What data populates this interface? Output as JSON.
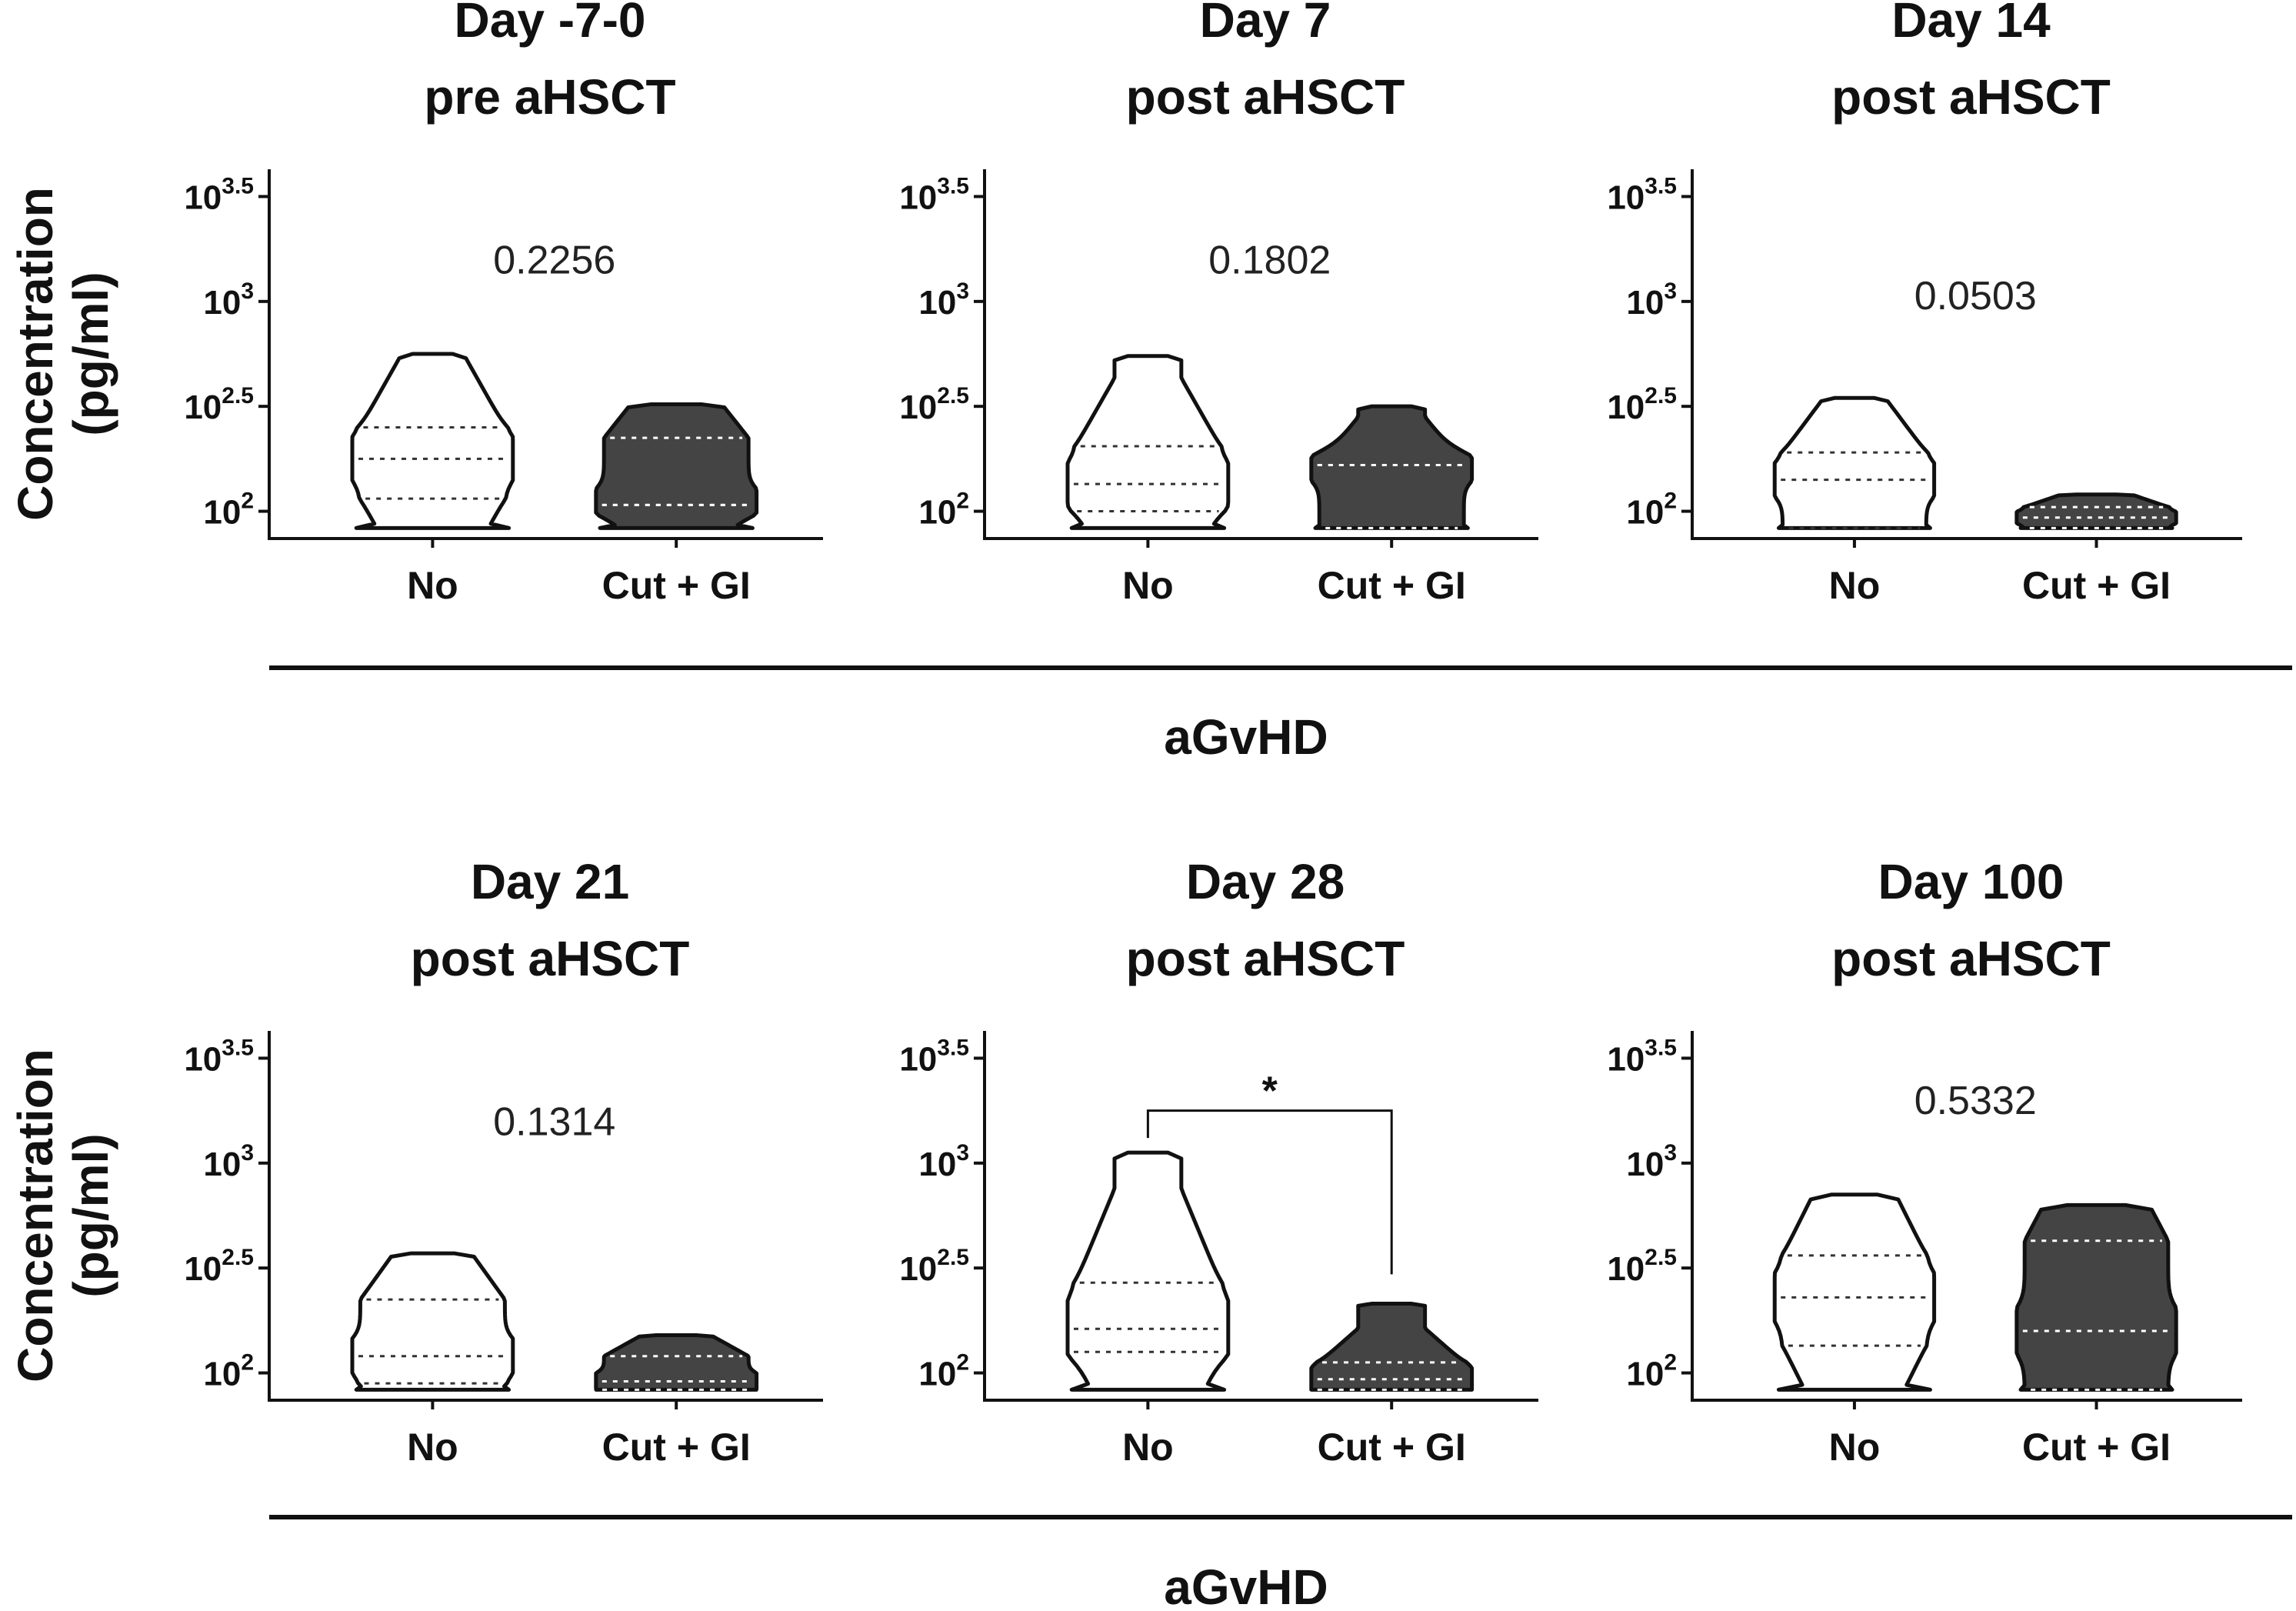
{
  "chart_data": [
    {
      "type": "violin",
      "title": [
        "Day -7-0",
        "pre aHSCT"
      ],
      "categories": [
        "No",
        "Cut + GI"
      ],
      "y_scale": "log10",
      "ylim": [
        1.87,
        3.63
      ],
      "yticks": [
        {
          "base": "10",
          "exp": "2"
        },
        {
          "base": "10",
          "exp": "2.5"
        },
        {
          "base": "10",
          "exp": "3"
        },
        {
          "base": "10",
          "exp": "3.5"
        }
      ],
      "ylabel": [
        "Concentration",
        "(pg/ml)"
      ],
      "annotation": "0.2256",
      "series": [
        {
          "name": "No",
          "fill": "#ffffff",
          "range": [
            1.92,
            2.75
          ],
          "median": 2.25,
          "quartiles": [
            2.06,
            2.4
          ]
        },
        {
          "name": "Cut + GI",
          "fill": "#444444",
          "range": [
            1.92,
            2.51
          ],
          "median": 2.03,
          "quartiles": [
            2.03,
            2.35
          ]
        }
      ]
    },
    {
      "type": "violin",
      "title": [
        "Day 7",
        "post aHSCT"
      ],
      "categories": [
        "No",
        "Cut + GI"
      ],
      "y_scale": "log10",
      "ylim": [
        1.87,
        3.63
      ],
      "yticks": [
        {
          "base": "10",
          "exp": "2"
        },
        {
          "base": "10",
          "exp": "2.5"
        },
        {
          "base": "10",
          "exp": "3"
        },
        {
          "base": "10",
          "exp": "3.5"
        }
      ],
      "annotation": "0.1802",
      "series": [
        {
          "name": "No",
          "fill": "#ffffff",
          "range": [
            1.92,
            2.74
          ],
          "median": 2.13,
          "quartiles": [
            2.0,
            2.31
          ]
        },
        {
          "name": "Cut + GI",
          "fill": "#444444",
          "range": [
            1.92,
            2.5
          ],
          "median": 2.22,
          "quartiles": [
            1.92,
            2.22
          ]
        }
      ]
    },
    {
      "type": "violin",
      "title": [
        "Day 14",
        "post aHSCT"
      ],
      "categories": [
        "No",
        "Cut + GI"
      ],
      "y_scale": "log10",
      "ylim": [
        1.87,
        3.63
      ],
      "yticks": [
        {
          "base": "10",
          "exp": "2"
        },
        {
          "base": "10",
          "exp": "2.5"
        },
        {
          "base": "10",
          "exp": "3"
        },
        {
          "base": "10",
          "exp": "3.5"
        }
      ],
      "annotation": "0.0503",
      "series": [
        {
          "name": "No",
          "fill": "#ffffff",
          "range": [
            1.92,
            2.54
          ],
          "median": 2.15,
          "quartiles": [
            1.92,
            2.28
          ]
        },
        {
          "name": "Cut + GI",
          "fill": "#444444",
          "range": [
            1.92,
            2.08
          ],
          "median": 1.97,
          "quartiles": [
            1.92,
            2.02
          ]
        }
      ]
    },
    {
      "type": "violin",
      "title": [
        "Day 21",
        "post aHSCT"
      ],
      "categories": [
        "No",
        "Cut + GI"
      ],
      "y_scale": "log10",
      "ylim": [
        1.87,
        3.63
      ],
      "yticks": [
        {
          "base": "10",
          "exp": "2"
        },
        {
          "base": "10",
          "exp": "2.5"
        },
        {
          "base": "10",
          "exp": "3"
        },
        {
          "base": "10",
          "exp": "3.5"
        }
      ],
      "ylabel": [
        "Concentration",
        "(pg/ml)"
      ],
      "annotation": "0.1314",
      "series": [
        {
          "name": "No",
          "fill": "#ffffff",
          "range": [
            1.92,
            2.57
          ],
          "median": 2.08,
          "quartiles": [
            1.95,
            2.35
          ]
        },
        {
          "name": "Cut + GI",
          "fill": "#444444",
          "range": [
            1.92,
            2.18
          ],
          "median": 1.96,
          "quartiles": [
            1.92,
            2.08
          ]
        }
      ]
    },
    {
      "type": "violin",
      "title": [
        "Day 28",
        "post aHSCT"
      ],
      "categories": [
        "No",
        "Cut + GI"
      ],
      "y_scale": "log10",
      "ylim": [
        1.87,
        3.63
      ],
      "yticks": [
        {
          "base": "10",
          "exp": "2"
        },
        {
          "base": "10",
          "exp": "2.5"
        },
        {
          "base": "10",
          "exp": "3"
        },
        {
          "base": "10",
          "exp": "3.5"
        }
      ],
      "annotation": "*",
      "bracket": true,
      "series": [
        {
          "name": "No",
          "fill": "#ffffff",
          "range": [
            1.92,
            3.05
          ],
          "median": 2.21,
          "quartiles": [
            2.1,
            2.43
          ]
        },
        {
          "name": "Cut + GI",
          "fill": "#444444",
          "range": [
            1.92,
            2.33
          ],
          "median": 1.97,
          "quartiles": [
            1.92,
            2.05
          ]
        }
      ]
    },
    {
      "type": "violin",
      "title": [
        "Day 100",
        "post aHSCT"
      ],
      "categories": [
        "No",
        "Cut + GI"
      ],
      "y_scale": "log10",
      "ylim": [
        1.87,
        3.63
      ],
      "yticks": [
        {
          "base": "10",
          "exp": "2"
        },
        {
          "base": "10",
          "exp": "2.5"
        },
        {
          "base": "10",
          "exp": "3"
        },
        {
          "base": "10",
          "exp": "3.5"
        }
      ],
      "annotation": "0.5332",
      "series": [
        {
          "name": "No",
          "fill": "#ffffff",
          "range": [
            1.92,
            2.85
          ],
          "median": 2.36,
          "quartiles": [
            2.13,
            2.56
          ]
        },
        {
          "name": "Cut + GI",
          "fill": "#444444",
          "range": [
            1.92,
            2.8
          ],
          "median": 2.2,
          "quartiles": [
            1.92,
            2.63
          ]
        }
      ]
    }
  ],
  "group_labels": [
    "aGvHD",
    "aGvHD"
  ]
}
